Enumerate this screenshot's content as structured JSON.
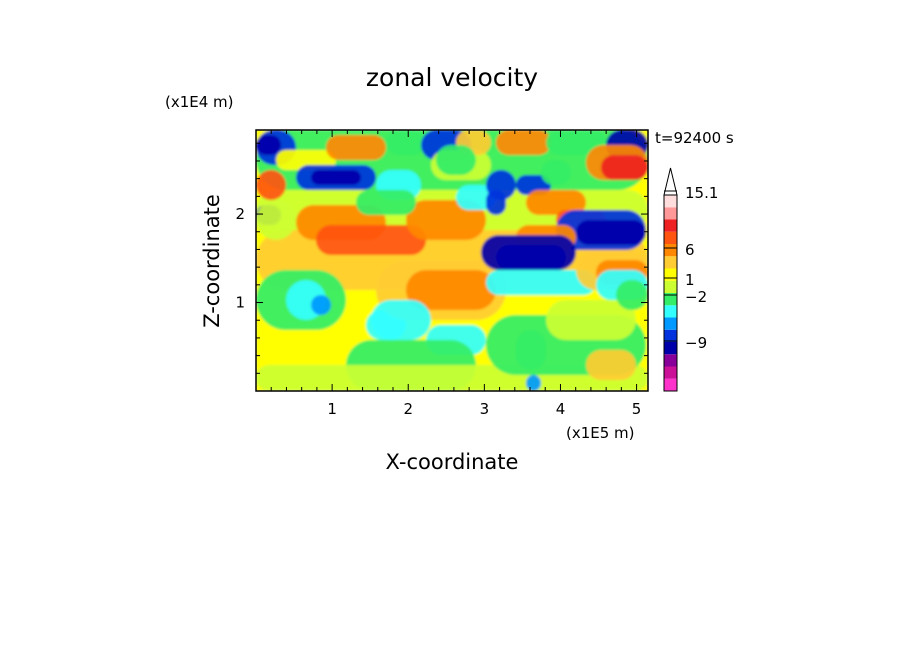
{
  "chart_data": {
    "type": "heatmap",
    "title": "zonal velocity",
    "xlabel": "X-coordinate",
    "ylabel": "Z-coordinate",
    "x_unit": "(x1E5 m)",
    "y_unit": "(x1E4 m)",
    "time_label": "t=92400 s",
    "xlim": [
      0,
      5.15
    ],
    "ylim": [
      0,
      2.95
    ],
    "x_ticks": [
      1,
      2,
      3,
      4,
      5
    ],
    "y_ticks": [
      1,
      2
    ],
    "colorbar": {
      "labeled_levels": [
        {
          "label": "15.1",
          "value": 15.1
        },
        {
          "label": "6",
          "value": 6
        },
        {
          "label": "1",
          "value": 1
        },
        {
          "label": "−2",
          "value": -2
        },
        {
          "label": "−9",
          "value": -9
        }
      ],
      "colors": [
        "#ff33cc",
        "#cc1199",
        "#880099",
        "#0000aa",
        "#0033dd",
        "#0099ff",
        "#33ffff",
        "#33ee66",
        "#ccff33",
        "#ffff00",
        "#ffcc33",
        "#ff8800",
        "#ff5511",
        "#ee2222",
        "#ff9999",
        "#ffdddd"
      ]
    }
  }
}
